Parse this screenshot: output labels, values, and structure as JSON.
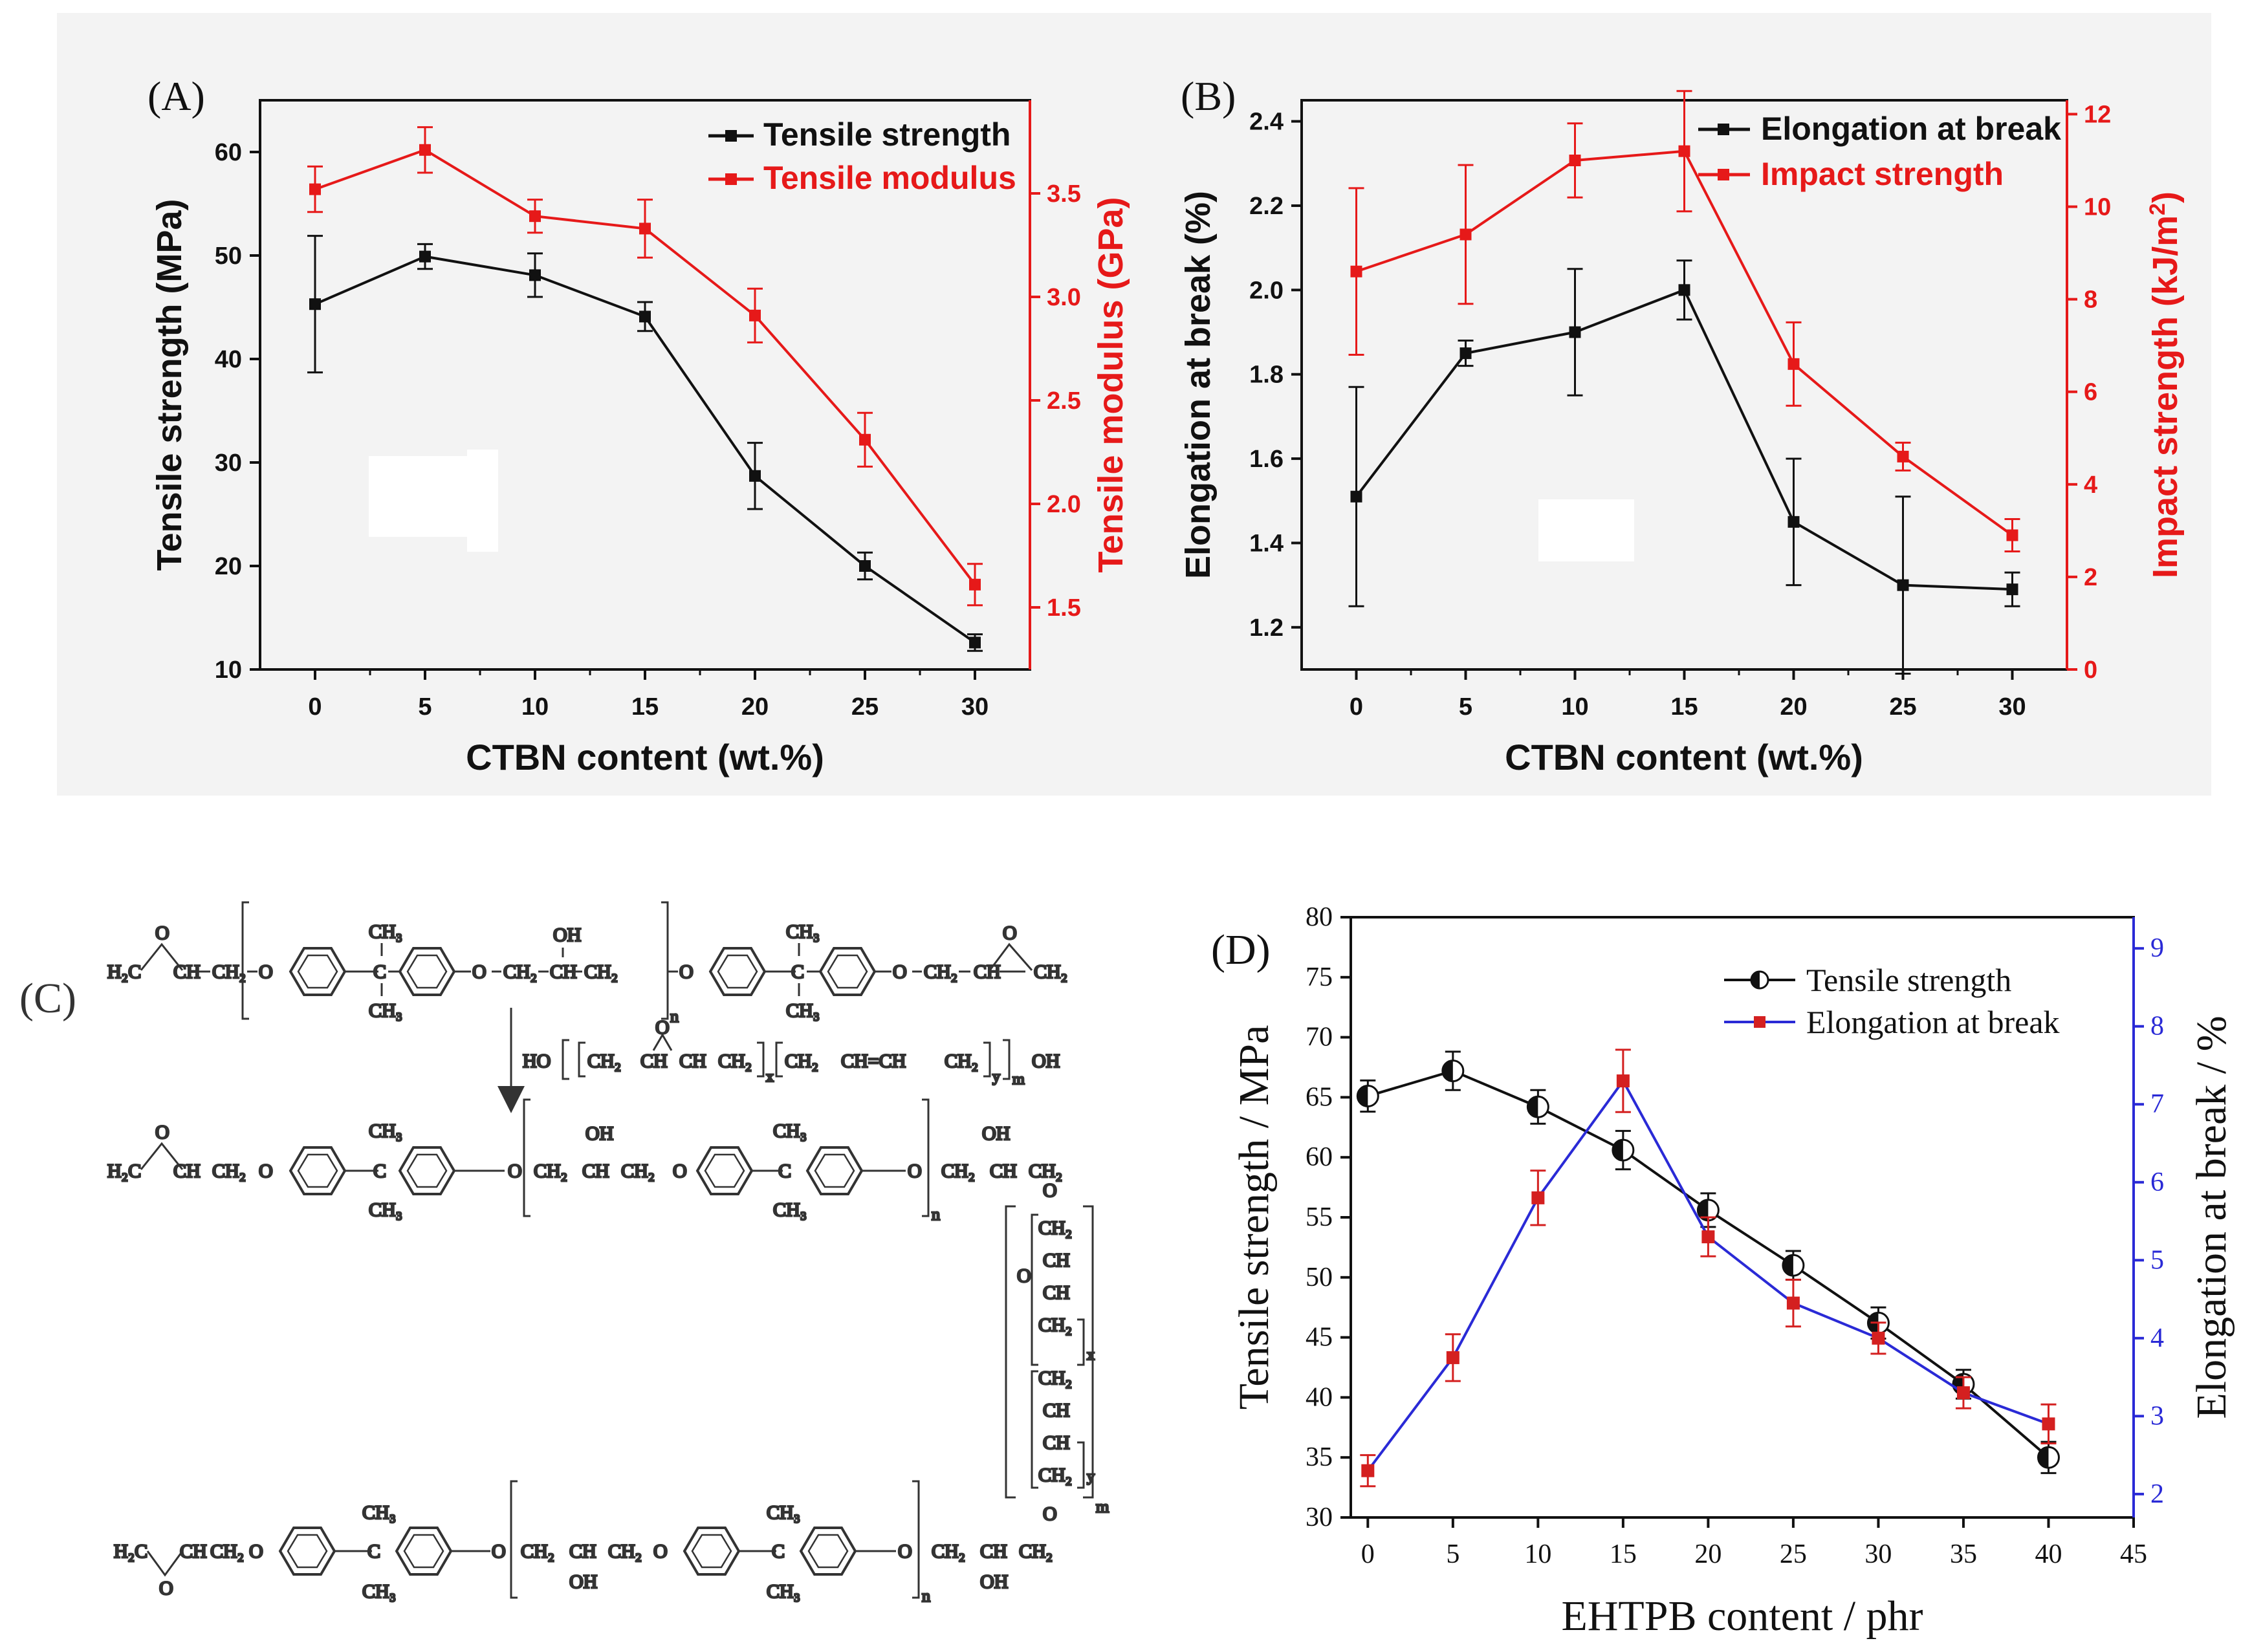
{
  "colors": {
    "black": "#111111",
    "red": "#e61919",
    "blue": "#2a2ad6",
    "dred": "#d42020"
  },
  "chart_data": [
    {
      "id": "A",
      "type": "line",
      "panel_label": "(A)",
      "xlabel": "CTBN content (wt.%)",
      "ylabel": "Tensile strength (MPa)",
      "y2label": "Tensile modulus (GPa)",
      "x": [
        0,
        5,
        10,
        15,
        20,
        25,
        30
      ],
      "xlim": [
        -2.5,
        32.5
      ],
      "xticks": [
        "0",
        "5",
        "10",
        "15",
        "20",
        "25",
        "30"
      ],
      "ylim": [
        10,
        65
      ],
      "yticks": [
        "10",
        "20",
        "30",
        "40",
        "50",
        "60"
      ],
      "y2lim": [
        1.2,
        3.95
      ],
      "y2ticks": [
        "1.5",
        "2.0",
        "2.5",
        "3.0",
        "3.5"
      ],
      "series": [
        {
          "name": "Tensile strength",
          "axis": "left",
          "color": "black",
          "marker": "square",
          "values": [
            45.3,
            49.9,
            48.1,
            44.1,
            28.7,
            20.0,
            12.6
          ],
          "errors": [
            6.6,
            1.2,
            2.1,
            1.4,
            3.2,
            1.3,
            0.8
          ]
        },
        {
          "name": "Tensile modulus",
          "axis": "right",
          "color": "red",
          "marker": "square",
          "values": [
            3.52,
            3.71,
            3.39,
            3.33,
            2.91,
            2.31,
            1.61
          ],
          "errors": [
            0.11,
            0.11,
            0.08,
            0.14,
            0.13,
            0.13,
            0.1
          ]
        }
      ],
      "legend": "top-right"
    },
    {
      "id": "B",
      "type": "line",
      "panel_label": "(B)",
      "xlabel": "CTBN content (wt.%)",
      "ylabel": "Elongation at break (%)",
      "y2label": "Impact strength (kJ/m",
      "y2label_sup": "2",
      "y2label_end": ")",
      "x": [
        0,
        5,
        10,
        15,
        20,
        25,
        30
      ],
      "xlim": [
        -2.5,
        32.5
      ],
      "xticks": [
        "0",
        "5",
        "10",
        "15",
        "20",
        "25",
        "30"
      ],
      "ylim": [
        1.1,
        2.45
      ],
      "yticks": [
        "1.2",
        "1.4",
        "1.6",
        "1.8",
        "2.0",
        "2.2",
        "2.4"
      ],
      "y2lim": [
        0,
        12.3
      ],
      "y2ticks": [
        "0",
        "2",
        "4",
        "6",
        "8",
        "10",
        "12"
      ],
      "series": [
        {
          "name": "Elongation at break",
          "axis": "left",
          "color": "black",
          "marker": "square",
          "values": [
            1.51,
            1.85,
            1.9,
            2.0,
            1.45,
            1.3,
            1.29
          ],
          "errors": [
            0.26,
            0.03,
            0.15,
            0.07,
            0.15,
            0.21,
            0.04
          ]
        },
        {
          "name": "Impact strength",
          "axis": "right",
          "color": "red",
          "marker": "square",
          "values": [
            8.6,
            9.4,
            11.0,
            11.2,
            6.6,
            4.6,
            2.9
          ],
          "errors": [
            1.8,
            1.5,
            0.8,
            1.3,
            0.9,
            0.3,
            0.35
          ]
        }
      ],
      "legend": "top-right"
    },
    {
      "id": "D",
      "type": "line",
      "panel_label": "(D)",
      "xlabel": "EHTPB content / phr",
      "ylabel": "Tensile strength / MPa",
      "y2label": "Elongation at break / %",
      "x": [
        0,
        5,
        10,
        15,
        20,
        25,
        30,
        35,
        40
      ],
      "xlim": [
        -1,
        45
      ],
      "xticks": [
        "0",
        "5",
        "10",
        "15",
        "20",
        "25",
        "30",
        "35",
        "40",
        "45"
      ],
      "ylim": [
        30,
        80
      ],
      "yticks": [
        "30",
        "35",
        "40",
        "45",
        "50",
        "55",
        "60",
        "65",
        "70",
        "75",
        "80"
      ],
      "y2lim": [
        1.7,
        9.4
      ],
      "y2ticks": [
        "2",
        "3",
        "4",
        "5",
        "6",
        "7",
        "8",
        "9"
      ],
      "series": [
        {
          "name": "Tensile strength",
          "axis": "left",
          "color": "black",
          "marker": "half-circle",
          "values": [
            65.1,
            67.2,
            64.2,
            60.6,
            55.6,
            51.0,
            46.2,
            41.1,
            35.0
          ],
          "errors": [
            1.3,
            1.6,
            1.4,
            1.6,
            1.4,
            1.2,
            1.3,
            1.2,
            1.3
          ]
        },
        {
          "name": "Elongation at break",
          "axis": "right",
          "color": "blue",
          "marker": "red-square",
          "values": [
            2.3,
            3.75,
            5.8,
            7.3,
            5.3,
            4.45,
            4.0,
            3.3,
            2.9
          ],
          "errors": [
            0.2,
            0.3,
            0.35,
            0.4,
            0.25,
            0.3,
            0.2,
            0.2,
            0.25
          ]
        }
      ],
      "legend": "top-right"
    }
  ],
  "panel_c": {
    "label": "(C)",
    "r1": {
      "h2c": "H₂C",
      "ch": "CH",
      "ch2": "CH₂",
      "o": "O",
      "ch3": "CH₃",
      "c": "C",
      "oh": "OH",
      "n": "n"
    },
    "reagent": {
      "ho": "HO",
      "ch2": "CH₂",
      "ch": "CH",
      "o": "O",
      "chch": "CH=CH",
      "x": "x",
      "y": "y",
      "m": "m",
      "oh": "OH"
    },
    "chain": {
      "ch2": "CH₂",
      "ch": "CH",
      "o": "O",
      "x": "x",
      "y": "y",
      "m": "m"
    }
  }
}
